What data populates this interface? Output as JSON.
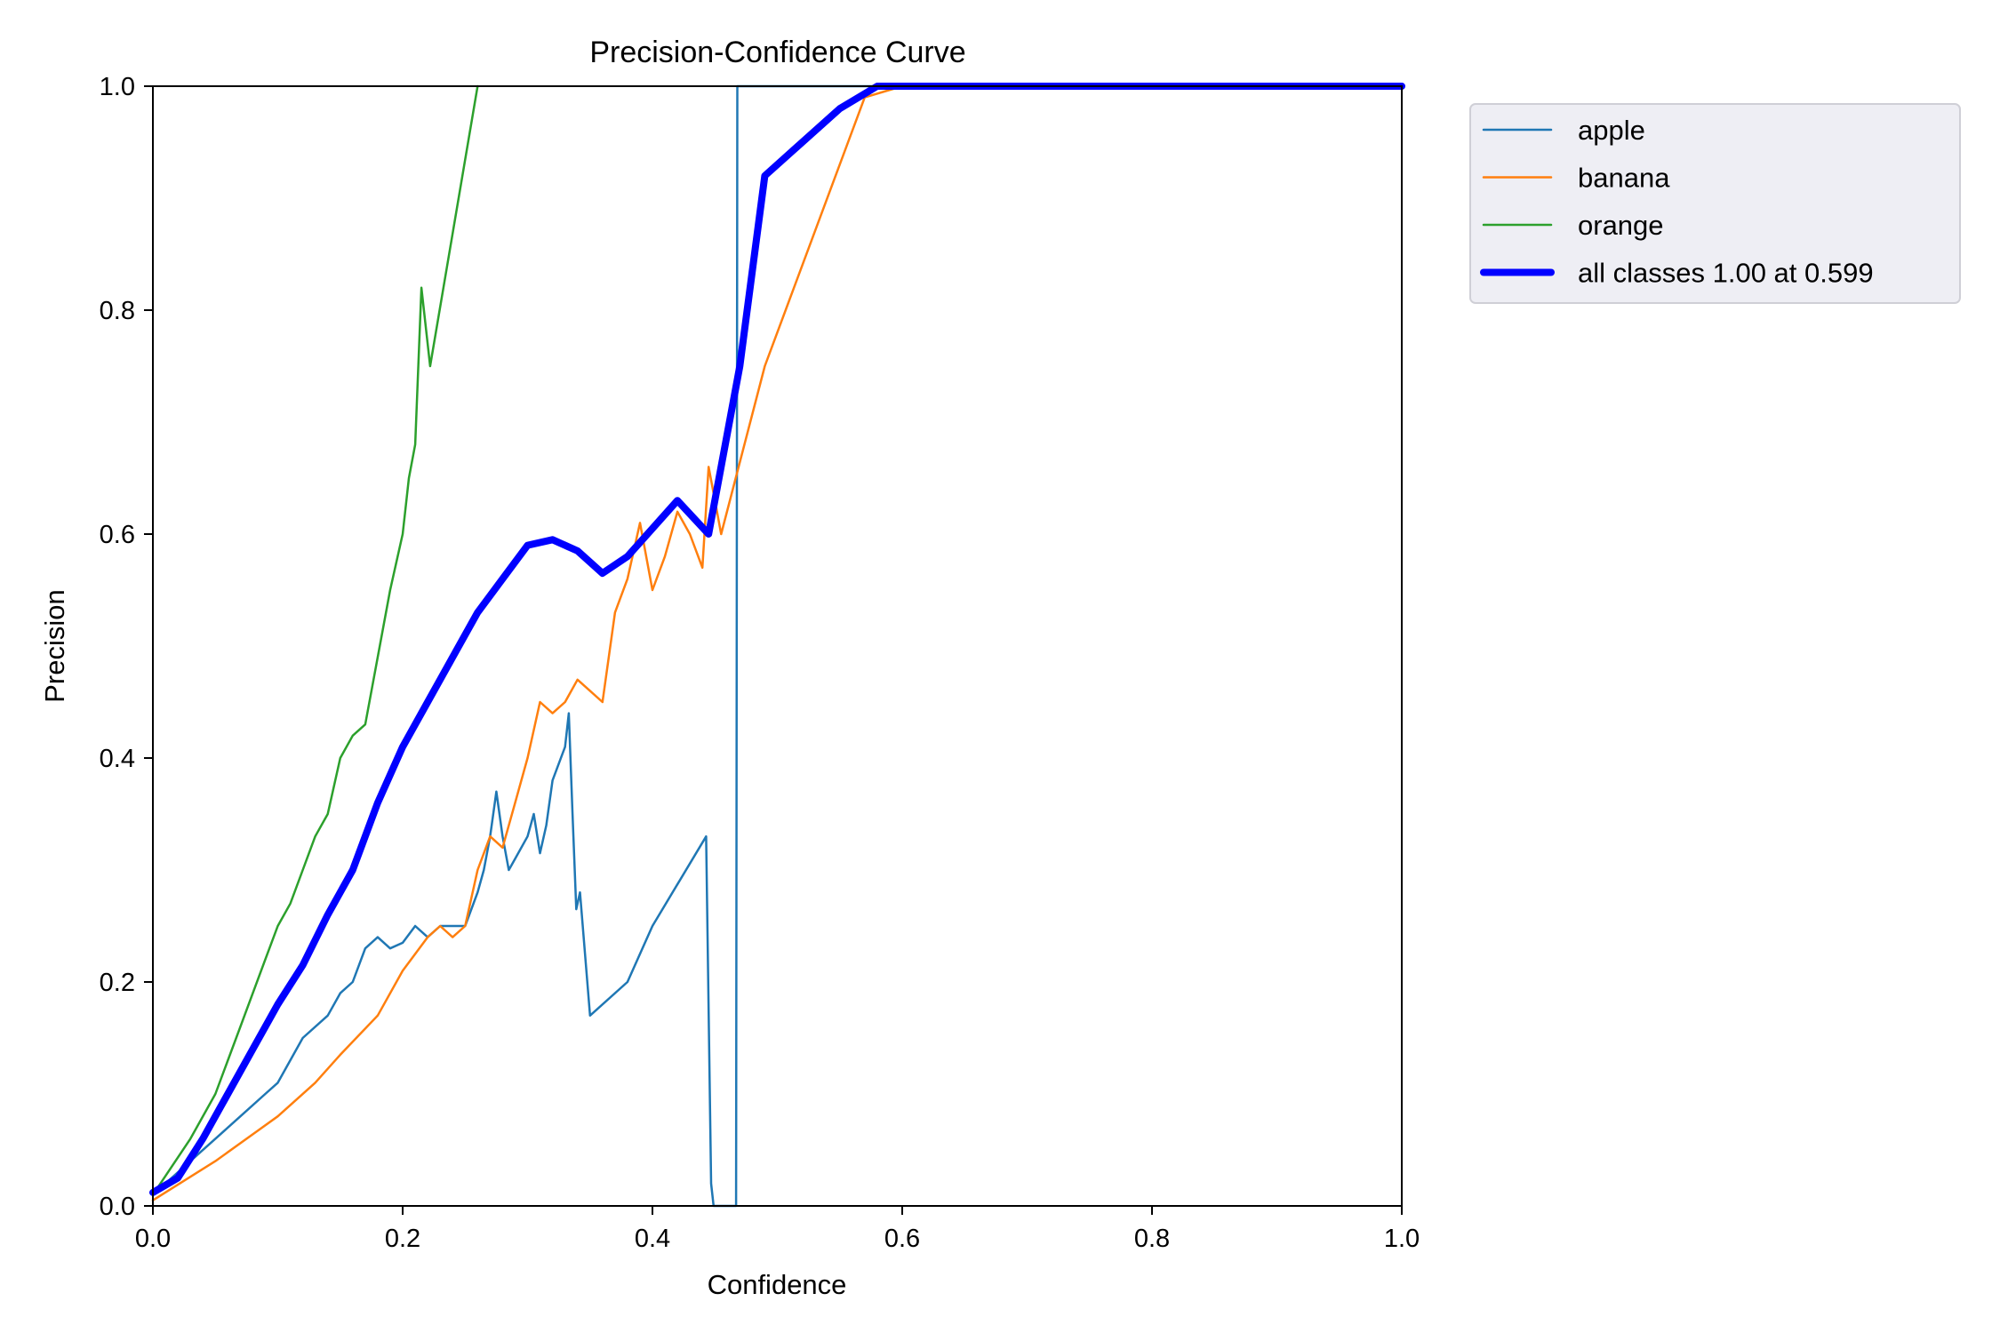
{
  "chart_data": {
    "type": "line",
    "title": "Precision-Confidence Curve",
    "xlabel": "Confidence",
    "ylabel": "Precision",
    "xlim": [
      0,
      1
    ],
    "ylim": [
      0,
      1
    ],
    "xticks": [
      "0.0",
      "0.2",
      "0.4",
      "0.6",
      "0.8",
      "1.0"
    ],
    "yticks": [
      "0.0",
      "0.2",
      "0.4",
      "0.6",
      "0.8",
      "1.0"
    ],
    "grid": false,
    "legend_position": "outside-top-right",
    "series": [
      {
        "name": "apple",
        "color": "#1f77b4",
        "points": [
          [
            0.0,
            0.01
          ],
          [
            0.03,
            0.04
          ],
          [
            0.05,
            0.06
          ],
          [
            0.07,
            0.08
          ],
          [
            0.09,
            0.1
          ],
          [
            0.1,
            0.11
          ],
          [
            0.12,
            0.15
          ],
          [
            0.14,
            0.17
          ],
          [
            0.15,
            0.19
          ],
          [
            0.16,
            0.2
          ],
          [
            0.17,
            0.23
          ],
          [
            0.18,
            0.24
          ],
          [
            0.19,
            0.23
          ],
          [
            0.2,
            0.235
          ],
          [
            0.21,
            0.25
          ],
          [
            0.22,
            0.24
          ],
          [
            0.23,
            0.25
          ],
          [
            0.24,
            0.25
          ],
          [
            0.25,
            0.25
          ],
          [
            0.26,
            0.28
          ],
          [
            0.265,
            0.3
          ],
          [
            0.27,
            0.33
          ],
          [
            0.275,
            0.37
          ],
          [
            0.28,
            0.33
          ],
          [
            0.285,
            0.3
          ],
          [
            0.29,
            0.31
          ],
          [
            0.3,
            0.33
          ],
          [
            0.305,
            0.35
          ],
          [
            0.31,
            0.315
          ],
          [
            0.315,
            0.34
          ],
          [
            0.32,
            0.38
          ],
          [
            0.33,
            0.41
          ],
          [
            0.333,
            0.44
          ],
          [
            0.336,
            0.35
          ],
          [
            0.339,
            0.265
          ],
          [
            0.342,
            0.28
          ],
          [
            0.35,
            0.17
          ],
          [
            0.38,
            0.2
          ],
          [
            0.4,
            0.25
          ],
          [
            0.443,
            0.33
          ],
          [
            0.447,
            0.02
          ],
          [
            0.449,
            0.0
          ],
          [
            0.467,
            0.0
          ],
          [
            0.468,
            1.0
          ],
          [
            1.0,
            1.0
          ]
        ]
      },
      {
        "name": "banana",
        "color": "#ff7f0e",
        "points": [
          [
            0.0,
            0.005
          ],
          [
            0.05,
            0.04
          ],
          [
            0.1,
            0.08
          ],
          [
            0.13,
            0.11
          ],
          [
            0.15,
            0.135
          ],
          [
            0.18,
            0.17
          ],
          [
            0.2,
            0.21
          ],
          [
            0.22,
            0.24
          ],
          [
            0.23,
            0.25
          ],
          [
            0.24,
            0.24
          ],
          [
            0.25,
            0.25
          ],
          [
            0.26,
            0.3
          ],
          [
            0.27,
            0.33
          ],
          [
            0.28,
            0.32
          ],
          [
            0.29,
            0.36
          ],
          [
            0.3,
            0.4
          ],
          [
            0.31,
            0.45
          ],
          [
            0.32,
            0.44
          ],
          [
            0.33,
            0.45
          ],
          [
            0.34,
            0.47
          ],
          [
            0.35,
            0.46
          ],
          [
            0.36,
            0.45
          ],
          [
            0.37,
            0.53
          ],
          [
            0.38,
            0.56
          ],
          [
            0.39,
            0.61
          ],
          [
            0.4,
            0.55
          ],
          [
            0.41,
            0.58
          ],
          [
            0.42,
            0.62
          ],
          [
            0.43,
            0.6
          ],
          [
            0.44,
            0.57
          ],
          [
            0.445,
            0.66
          ],
          [
            0.45,
            0.63
          ],
          [
            0.455,
            0.6
          ],
          [
            0.49,
            0.75
          ],
          [
            0.57,
            0.99
          ],
          [
            0.6,
            1.0
          ],
          [
            1.0,
            1.0
          ]
        ]
      },
      {
        "name": "orange",
        "color": "#2ca02c",
        "points": [
          [
            0.0,
            0.01
          ],
          [
            0.03,
            0.06
          ],
          [
            0.05,
            0.1
          ],
          [
            0.07,
            0.16
          ],
          [
            0.09,
            0.22
          ],
          [
            0.1,
            0.25
          ],
          [
            0.11,
            0.27
          ],
          [
            0.12,
            0.3
          ],
          [
            0.13,
            0.33
          ],
          [
            0.14,
            0.35
          ],
          [
            0.15,
            0.4
          ],
          [
            0.16,
            0.42
          ],
          [
            0.17,
            0.43
          ],
          [
            0.18,
            0.49
          ],
          [
            0.19,
            0.55
          ],
          [
            0.2,
            0.6
          ],
          [
            0.205,
            0.65
          ],
          [
            0.21,
            0.68
          ],
          [
            0.215,
            0.82
          ],
          [
            0.222,
            0.75
          ],
          [
            0.26,
            1.0
          ]
        ]
      },
      {
        "name": "all classes 1.00 at 0.599",
        "color": "#0000ff",
        "points": [
          [
            0.0,
            0.012
          ],
          [
            0.02,
            0.025
          ],
          [
            0.04,
            0.06
          ],
          [
            0.06,
            0.1
          ],
          [
            0.08,
            0.14
          ],
          [
            0.1,
            0.18
          ],
          [
            0.12,
            0.215
          ],
          [
            0.14,
            0.26
          ],
          [
            0.16,
            0.3
          ],
          [
            0.18,
            0.36
          ],
          [
            0.2,
            0.41
          ],
          [
            0.22,
            0.45
          ],
          [
            0.24,
            0.49
          ],
          [
            0.26,
            0.53
          ],
          [
            0.28,
            0.56
          ],
          [
            0.3,
            0.59
          ],
          [
            0.32,
            0.595
          ],
          [
            0.34,
            0.585
          ],
          [
            0.36,
            0.565
          ],
          [
            0.38,
            0.58
          ],
          [
            0.4,
            0.605
          ],
          [
            0.42,
            0.63
          ],
          [
            0.445,
            0.6
          ],
          [
            0.47,
            0.75
          ],
          [
            0.49,
            0.92
          ],
          [
            0.52,
            0.95
          ],
          [
            0.55,
            0.98
          ],
          [
            0.58,
            1.0
          ],
          [
            0.6,
            1.0
          ],
          [
            1.0,
            1.0
          ]
        ]
      }
    ],
    "legend": [
      {
        "label": "apple",
        "color": "#1f77b4",
        "thick": false
      },
      {
        "label": "banana",
        "color": "#ff7f0e",
        "thick": false
      },
      {
        "label": "orange",
        "color": "#2ca02c",
        "thick": false
      },
      {
        "label": "all classes 1.00 at 0.599",
        "color": "#0000ff",
        "thick": true
      }
    ]
  }
}
